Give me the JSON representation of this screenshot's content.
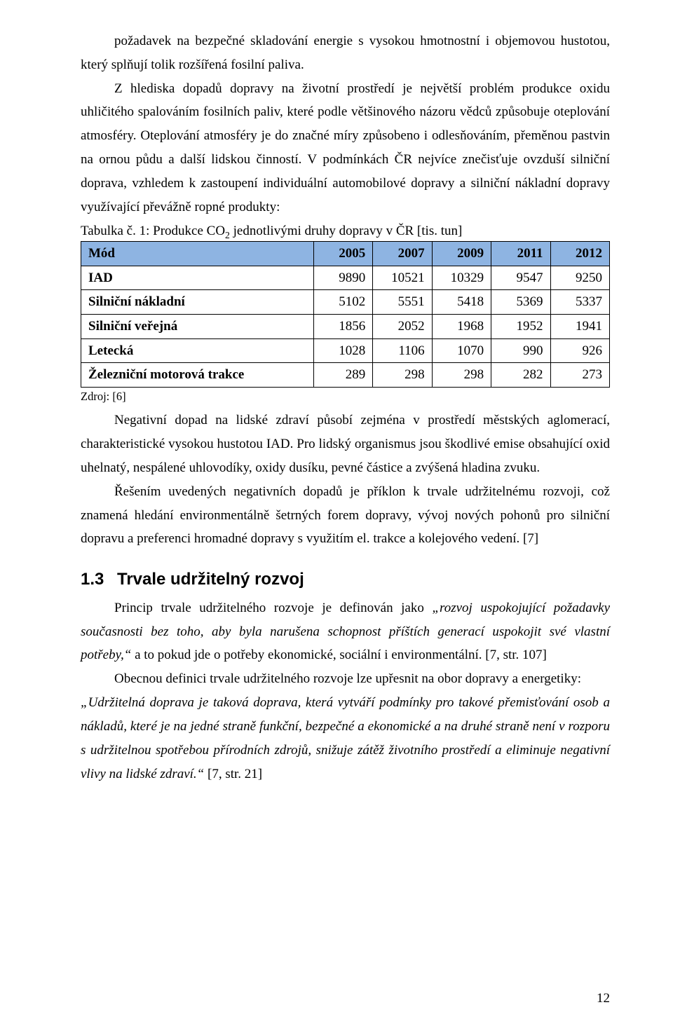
{
  "paragraphs": {
    "p1_cont": "požadavek na bezpečné skladování energie s vysokou hmotnostní i objemovou hustotou, který splňují tolik rozšířená fosilní paliva.",
    "p2": "Z hlediska dopadů dopravy na životní prostředí je největší problém produkce oxidu uhličitého spalováním fosilních paliv, které podle většinového názoru vědců způsobuje oteplování atmosféry. Oteplování atmosféry je do značné míry způsobeno i odlesňováním, přeměnou pastvin na ornou půdu a další lidskou činností. V podmínkách ČR nejvíce znečisťuje ovzduší silniční doprava, vzhledem k zastoupení individuální automobilové dopravy a silniční nákladní dopravy využívající převážně ropné produkty:",
    "table_caption_a": "Tabulka č. 1: Produkce CO",
    "table_caption_b": " jednotlivými druhy dopravy v ČR [tis. tun]",
    "co2_sub": "2",
    "source_label": "Zdroj: [6]",
    "p3": "Negativní dopad na lidské zdraví působí zejména v prostředí městských aglomerací, charakteristické vysokou hustotou IAD. Pro lidský organismus jsou škodlivé emise obsahující oxid uhelnatý, nespálené uhlovodíky, oxidy dusíku, pevné částice a zvýšená hladina zvuku.",
    "p4": "Řešením uvedených negativních dopadů je příklon k trvale udržitelnému rozvoji, což znamená hledání environmentálně šetrných forem dopravy, vývoj nových pohonů pro silniční dopravu a preferenci hromadné dopravy s využitím el. trakce a kolejového vedení. [7]",
    "p5_a": "Princip trvale udržitelného rozvoje je definován jako ",
    "p5_quote": "„rozvoj uspokojující požadavky současnosti bez toho, aby byla narušena schopnost příštích generací uspokojit své vlastní potřeby,“",
    "p5_b": " a to pokud jde o potřeby ekonomické, sociální i environmentální. [7, str. 107]",
    "p6": "Obecnou definici trvale udržitelného rozvoje lze upřesnit na obor dopravy a energetiky:",
    "p7_quote": "„Udržitelná doprava je taková doprava, která vytváří podmínky pro takové přemisťování osob a nákladů, které je na jedné straně funkční, bezpečné a ekonomické a na druhé straně není v rozporu s udržitelnou spotřebou přírodních zdrojů, snižuje zátěž životního prostředí a eliminuje negativní vlivy na lidské zdraví.“",
    "p7_cite": " [7, str. 21]"
  },
  "section": {
    "number": "1.3",
    "title": "Trvale udržitelný rozvoj"
  },
  "table": {
    "header_bg": "#8eb4e2",
    "columns": [
      "Mód",
      "2005",
      "2007",
      "2009",
      "2011",
      "2012"
    ],
    "rows": [
      {
        "label": "IAD",
        "v": [
          "9890",
          "10521",
          "10329",
          "9547",
          "9250"
        ]
      },
      {
        "label": "Silniční nákladní",
        "v": [
          "5102",
          "5551",
          "5418",
          "5369",
          "5337"
        ]
      },
      {
        "label": "Silniční veřejná",
        "v": [
          "1856",
          "2052",
          "1968",
          "1952",
          "1941"
        ]
      },
      {
        "label": "Letecká",
        "v": [
          "1028",
          "1106",
          "1070",
          "990",
          "926"
        ]
      },
      {
        "label": "Železniční motorová trakce",
        "v": [
          "289",
          "298",
          "298",
          "282",
          "273"
        ]
      }
    ],
    "col_widths": [
      "44%",
      "11.2%",
      "11.2%",
      "11.2%",
      "11.2%",
      "11.2%"
    ]
  },
  "page_number": "12"
}
